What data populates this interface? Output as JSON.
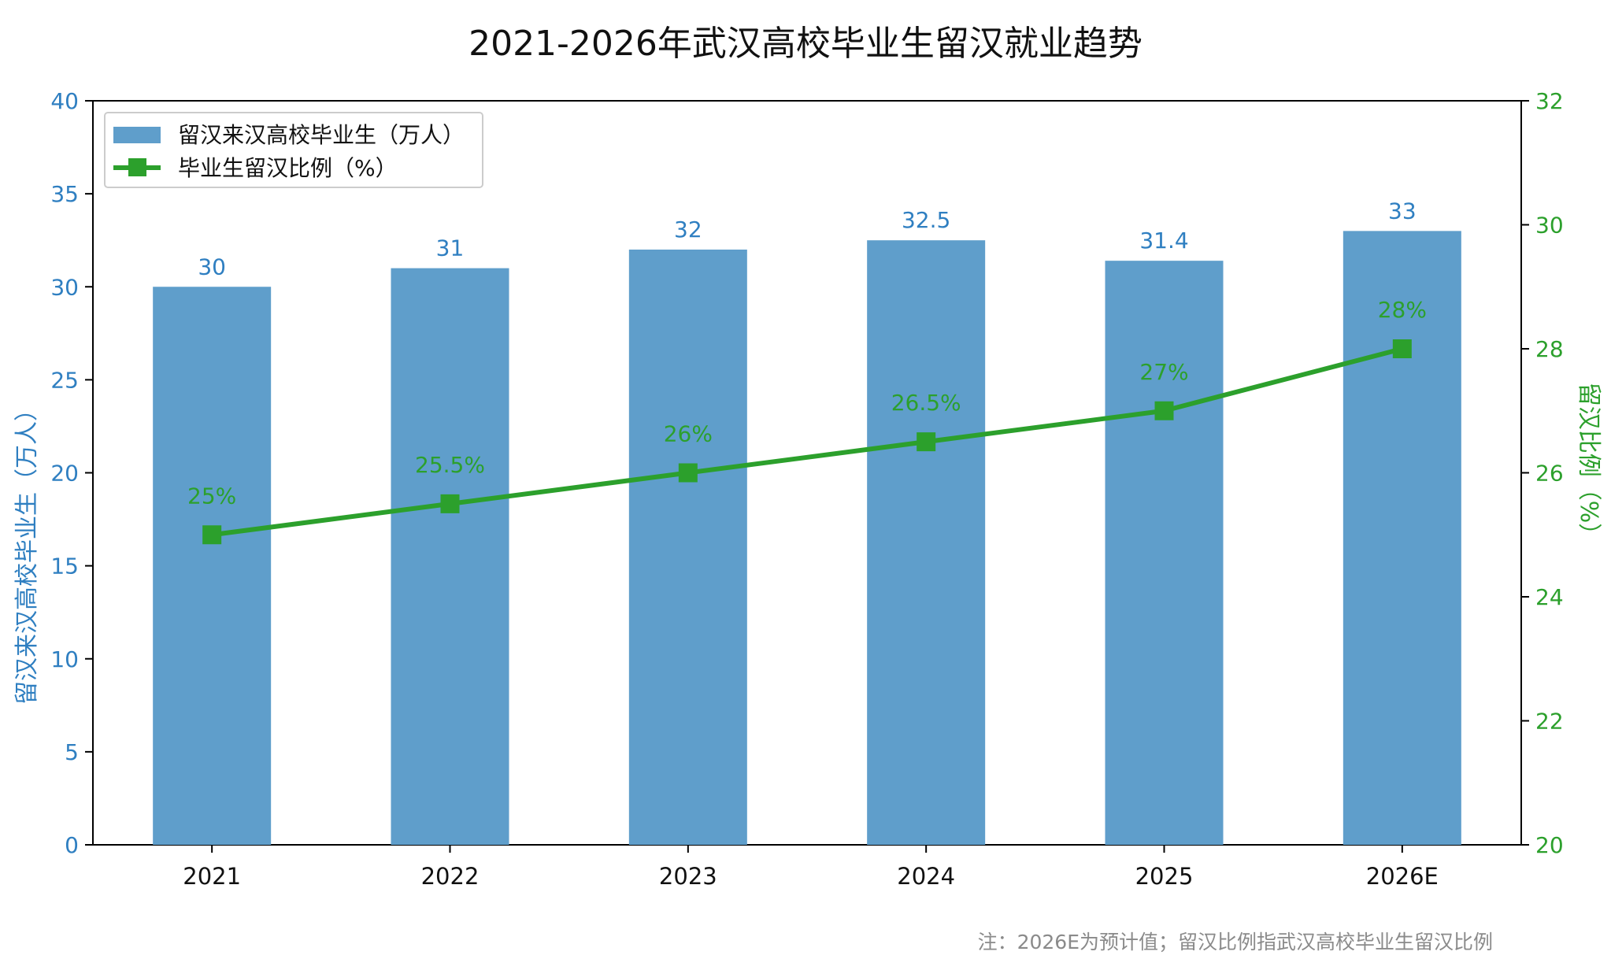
{
  "chart_data": {
    "type": "bar",
    "title": "2021-2026年武汉高校毕业生留汉就业趋势",
    "categories": [
      "2021",
      "2022",
      "2023",
      "2024",
      "2025",
      "2026E"
    ],
    "series": [
      {
        "name": "留汉来汉高校毕业生（万人）",
        "type": "bar",
        "axis": "left",
        "values": [
          30,
          31,
          32,
          32.5,
          31.4,
          33
        ],
        "data_labels": [
          "30",
          "31",
          "32",
          "32.5",
          "31.4",
          "33"
        ],
        "color": "#5f9ecb"
      },
      {
        "name": "毕业生留汉比例（%）",
        "type": "line",
        "axis": "right",
        "values": [
          25,
          25.5,
          26,
          26.5,
          27,
          28
        ],
        "data_labels": [
          "25%",
          "25.5%",
          "26%",
          "26.5%",
          "27%",
          "28%"
        ],
        "color": "#2ca02c"
      }
    ],
    "ylabel_left": "留汉来汉高校毕业生（万人）",
    "ylabel_right": "留汉比例（%）",
    "ylim_left": [
      0,
      40
    ],
    "yticks_left": [
      "0",
      "5",
      "10",
      "15",
      "20",
      "25",
      "30",
      "35",
      "40"
    ],
    "ylim_right": [
      20,
      32
    ],
    "yticks_right": [
      "20",
      "22",
      "24",
      "26",
      "28",
      "30",
      "32"
    ],
    "grid": false,
    "legend_position": "top-left",
    "note": "注：2026E为预计值；留汉比例指武汉高校毕业生留汉比例",
    "colors": {
      "left_axis": "#2f7fc1",
      "right_axis": "#2ca02c"
    }
  }
}
